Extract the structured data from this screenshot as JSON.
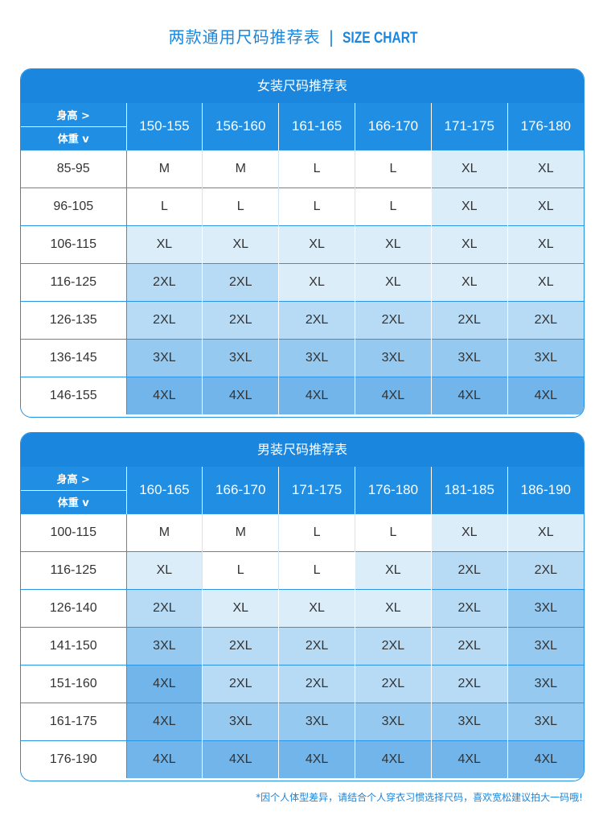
{
  "title": {
    "cn": "两款通用尺码推荐表",
    "sep": "|",
    "en": "SIZE CHART"
  },
  "women": {
    "header": "女装尺码推荐表",
    "corner_top": "身高 >",
    "corner_bottom": "体重 v",
    "heights": [
      "150-155",
      "156-160",
      "161-165",
      "166-170",
      "171-175",
      "176-180"
    ],
    "rows": [
      {
        "weight": "85-95",
        "sizes": [
          "M",
          "M",
          "L",
          "L",
          "XL",
          "XL"
        ]
      },
      {
        "weight": "96-105",
        "sizes": [
          "L",
          "L",
          "L",
          "L",
          "XL",
          "XL"
        ]
      },
      {
        "weight": "106-115",
        "sizes": [
          "XL",
          "XL",
          "XL",
          "XL",
          "XL",
          "XL"
        ]
      },
      {
        "weight": "116-125",
        "sizes": [
          "2XL",
          "2XL",
          "XL",
          "XL",
          "XL",
          "XL"
        ]
      },
      {
        "weight": "126-135",
        "sizes": [
          "2XL",
          "2XL",
          "2XL",
          "2XL",
          "2XL",
          "2XL"
        ]
      },
      {
        "weight": "136-145",
        "sizes": [
          "3XL",
          "3XL",
          "3XL",
          "3XL",
          "3XL",
          "3XL"
        ]
      },
      {
        "weight": "146-155",
        "sizes": [
          "4XL",
          "4XL",
          "4XL",
          "4XL",
          "4XL",
          "4XL"
        ]
      }
    ]
  },
  "men": {
    "header": "男装尺码推荐表",
    "corner_top": "身高 >",
    "corner_bottom": "体重 v",
    "heights": [
      "160-165",
      "166-170",
      "171-175",
      "176-180",
      "181-185",
      "186-190"
    ],
    "rows": [
      {
        "weight": "100-115",
        "sizes": [
          "M",
          "M",
          "L",
          "L",
          "XL",
          "XL"
        ]
      },
      {
        "weight": "116-125",
        "sizes": [
          "XL",
          "L",
          "L",
          "XL",
          "2XL",
          "2XL"
        ]
      },
      {
        "weight": "126-140",
        "sizes": [
          "2XL",
          "XL",
          "XL",
          "XL",
          "2XL",
          "3XL"
        ]
      },
      {
        "weight": "141-150",
        "sizes": [
          "3XL",
          "2XL",
          "2XL",
          "2XL",
          "2XL",
          "3XL"
        ]
      },
      {
        "weight": "151-160",
        "sizes": [
          "4XL",
          "2XL",
          "2XL",
          "2XL",
          "2XL",
          "3XL"
        ]
      },
      {
        "weight": "161-175",
        "sizes": [
          "4XL",
          "3XL",
          "3XL",
          "3XL",
          "3XL",
          "3XL"
        ]
      },
      {
        "weight": "176-190",
        "sizes": [
          "4XL",
          "4XL",
          "4XL",
          "4XL",
          "4XL",
          "4XL"
        ]
      }
    ]
  },
  "footnote": "*因个人体型差异，请结合个人穿衣习惯选择尺码，喜欢宽松建议拍大一码哦!",
  "colors": {
    "brand": "#1a86dd",
    "header": "#1f8ee3",
    "L": "#ffffff",
    "XL": "#dcedfa",
    "2XL": "#b8dbf5",
    "3XL": "#95c9f0",
    "4XL": "#72b5ea"
  }
}
